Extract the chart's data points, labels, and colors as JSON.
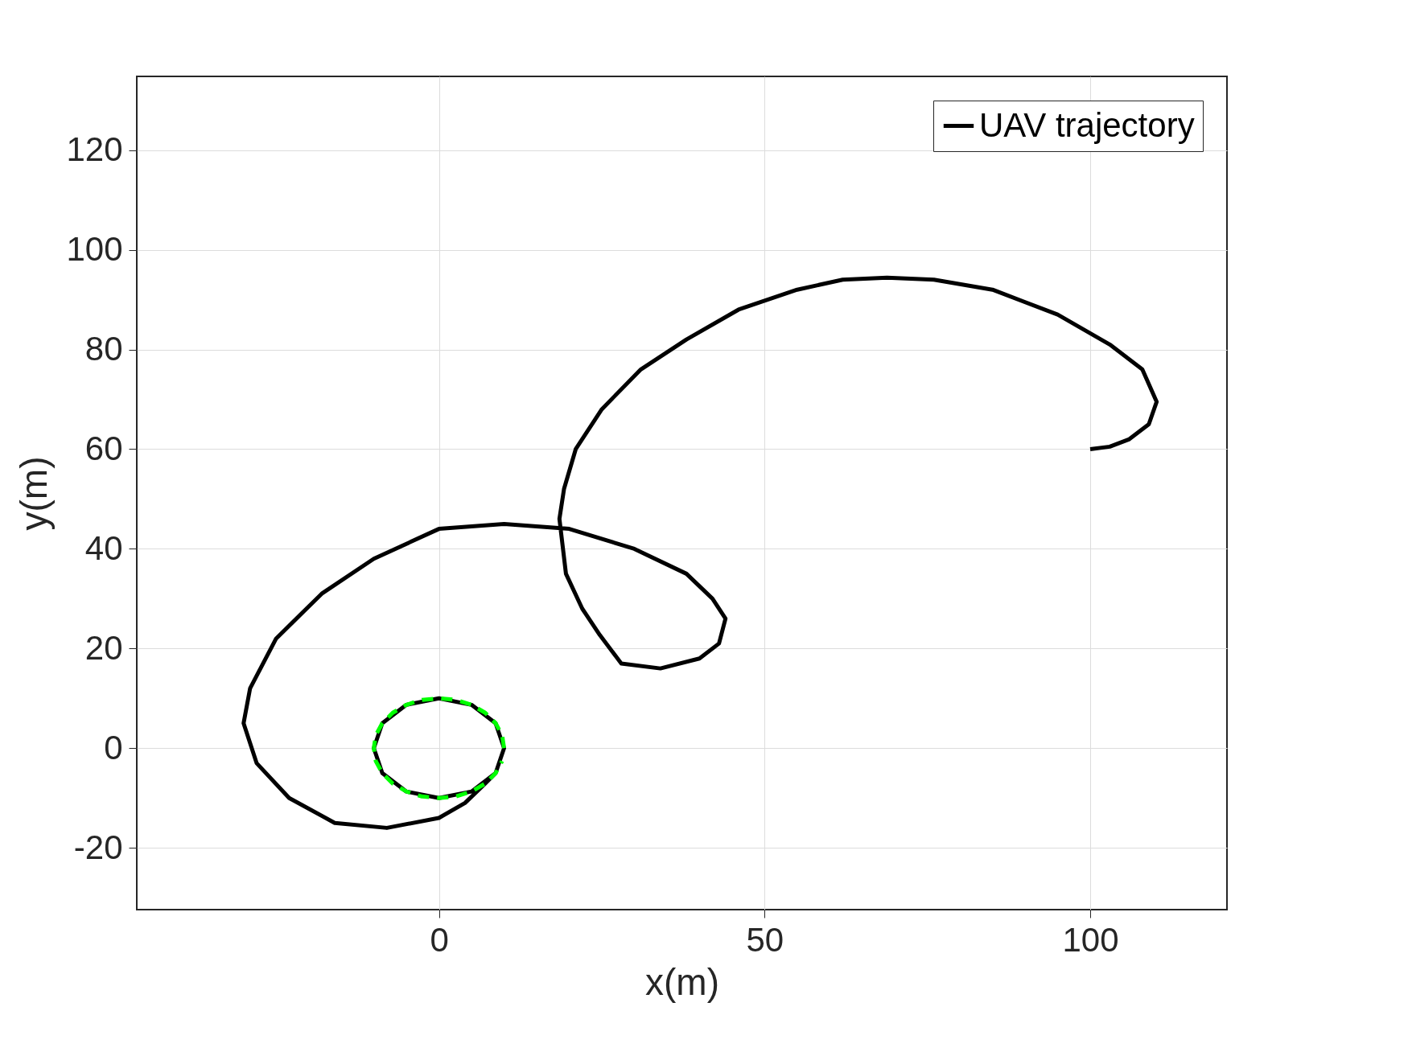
{
  "chart_data": {
    "type": "line",
    "xlabel": "x(m)",
    "ylabel": "y(m)",
    "xlim": [
      -46.4,
      121
    ],
    "ylim": [
      -32.4,
      134.8
    ],
    "xticks": [
      0,
      50,
      100
    ],
    "yticks": [
      -20,
      0,
      20,
      40,
      60,
      80,
      100,
      120
    ],
    "grid": true,
    "legend": "top right",
    "line_style": "solid",
    "marker": "none",
    "series": [
      {
        "name": "UAV trajectory",
        "color": "#000000",
        "x": [
          0,
          5,
          8.7,
          10,
          8.7,
          5,
          0,
          -5,
          -8.7,
          -10,
          -8.7,
          -5,
          0,
          5,
          8.7,
          10,
          8.7,
          7.1,
          4,
          0,
          -8,
          -16,
          -23,
          -28,
          -30,
          -29,
          -25,
          -18,
          -10,
          0,
          10,
          20,
          30,
          38,
          42,
          44,
          43,
          40,
          34,
          28,
          24.7,
          22,
          19.5,
          18.5,
          19.2,
          21,
          25,
          31,
          38,
          46,
          55,
          62,
          68.8,
          76,
          85,
          95,
          103,
          108,
          110.2,
          109,
          106,
          103,
          100
        ],
        "values": [
          10,
          8.7,
          5,
          0,
          -5,
          -8.7,
          -10,
          -8.7,
          -5,
          0,
          5,
          8.7,
          10,
          8.7,
          5,
          0,
          -5,
          -7.1,
          -11,
          -14,
          -16,
          -15,
          -10,
          -3,
          5,
          12,
          22,
          31,
          38,
          44,
          45,
          44,
          40,
          35,
          30,
          26,
          21,
          18,
          16,
          17,
          22.7,
          28,
          35,
          46,
          52,
          60,
          68,
          76,
          82,
          88,
          92,
          94,
          94.4,
          94,
          92,
          87,
          81,
          76,
          69.5,
          65,
          62,
          60.5,
          60
        ]
      },
      {
        "color": "#00ff00",
        "line_style": "dashed",
        "x": [
          10,
          9.7,
          8.7,
          7.1,
          5,
          2.6,
          0,
          -2.6,
          -5,
          -7.1,
          -8.7,
          -9.7,
          -10,
          -9.7,
          -8.7,
          -7.1,
          -5,
          -2.6,
          0,
          2.6,
          5,
          7.1,
          8.7,
          9.7
        ],
        "values": [
          0,
          2.6,
          5,
          7.1,
          8.7,
          9.7,
          10,
          9.7,
          8.7,
          7.1,
          5,
          2.6,
          0,
          -2.6,
          -5,
          -7.1,
          -8.7,
          -9.7,
          -10,
          -9.7,
          -8.7,
          -7.1,
          -5,
          -2.6
        ]
      }
    ]
  }
}
